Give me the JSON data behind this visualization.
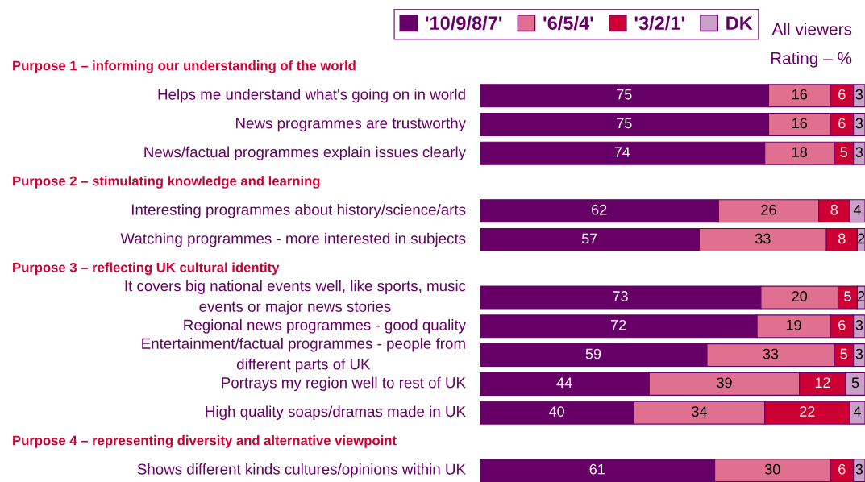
{
  "chart_data": {
    "type": "bar",
    "orientation": "horizontal",
    "stacked": true,
    "data_labels": true,
    "legend": "top",
    "xlim": [
      0,
      100
    ],
    "categories": [
      null,
      "Helps me understand what's going on in world",
      "News programmes are trustworthy",
      "News/factual programmes explain issues clearly",
      null,
      "Interesting programmes about history/science/arts",
      "Watching programmes - more interested in subjects",
      null,
      "It covers big national events well, like sports, music\nevents or major news stories",
      "Regional news programmes - good quality",
      "Entertainment/factual programmes - people from\ndifferent parts of UK",
      "Portrays my region well to rest of UK",
      "High quality soaps/dramas made in UK",
      null,
      "Shows different kinds cultures/opinions within UK"
    ],
    "series": [
      {
        "name": "'10/9/8/7'",
        "color": "#660066",
        "values": [
          null,
          75,
          75,
          74,
          null,
          62,
          57,
          null,
          73,
          72,
          59,
          44,
          40,
          null,
          61
        ]
      },
      {
        "name": "'6/5/4'",
        "color": "#e07090",
        "values": [
          null,
          16,
          16,
          18,
          null,
          26,
          33,
          null,
          20,
          19,
          33,
          39,
          34,
          null,
          30
        ]
      },
      {
        "name": "'3/2/1'",
        "color": "#cc0033",
        "values": [
          null,
          6,
          6,
          5,
          null,
          8,
          8,
          null,
          5,
          6,
          5,
          12,
          22,
          null,
          6
        ]
      },
      {
        "name": "DK",
        "color": "#c8a0c8",
        "values": [
          null,
          3,
          3,
          3,
          null,
          4,
          2,
          null,
          2,
          3,
          3,
          5,
          4,
          null,
          3
        ]
      }
    ],
    "annotations": [
      "All viewers",
      "Rating – %",
      "Purpose 1 – informing our understanding of the world",
      "Purpose 2 – stimulating knowledge and learning",
      "Purpose 3 – reflecting UK cultural identity",
      "Purpose 4 – representing diversity and alternative viewpoint"
    ]
  }
}
